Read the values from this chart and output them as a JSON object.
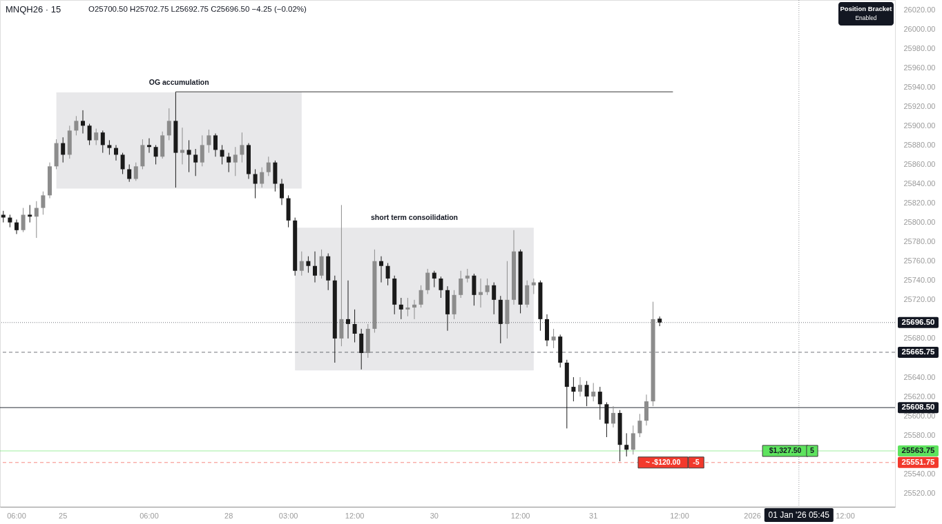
{
  "chart_data": {
    "type": "candlestick",
    "title": "MNQH26 · 15",
    "subtitle": "O25700.50 H25702.75 L25692.75 C25696.50 −4.25 (−0.02%)",
    "categories": [
      null,
      null,
      "06:00",
      null,
      null,
      null,
      null,
      null,
      null,
      "25",
      null,
      null,
      null,
      null,
      null,
      null,
      null,
      null,
      null,
      null,
      null,
      null,
      "06:00",
      null,
      null,
      null,
      null,
      null,
      null,
      null,
      null,
      null,
      null,
      null,
      "28",
      null,
      null,
      null,
      null,
      null,
      null,
      null,
      null,
      "03:00",
      null,
      null,
      null,
      null,
      null,
      null,
      null,
      null,
      null,
      "12:00",
      null,
      null,
      null,
      null,
      null,
      null,
      null,
      null,
      null,
      null,
      null,
      "30",
      null,
      null,
      null,
      null,
      null,
      null,
      null,
      null,
      null,
      null,
      null,
      null,
      "12:00",
      null,
      null,
      null,
      null,
      null,
      null,
      null,
      null,
      null,
      null,
      "31",
      null,
      null,
      null,
      null,
      null,
      null,
      null,
      null,
      null,
      null,
      null,
      null,
      "12:00",
      null,
      null,
      null,
      null,
      null,
      null,
      null,
      null,
      null,
      null,
      "2026",
      null,
      null,
      null,
      null,
      null,
      null,
      "01 Jan '26 05:45",
      null,
      null,
      null,
      null,
      null,
      null,
      "12:00",
      null,
      null,
      null,
      null,
      null,
      null,
      null
    ],
    "ohlc": [
      [
        25808,
        25812,
        25800,
        25805
      ],
      [
        25805,
        25808,
        25795,
        25800
      ],
      [
        25800,
        25803,
        25788,
        25792
      ],
      [
        25792,
        25815,
        25790,
        25808
      ],
      [
        25808,
        25818,
        25800,
        25806
      ],
      [
        25806,
        25822,
        25784,
        25815
      ],
      [
        25815,
        25832,
        25808,
        25828
      ],
      [
        25828,
        25862,
        25825,
        25858
      ],
      [
        25858,
        25886,
        25855,
        25882
      ],
      [
        25882,
        25888,
        25862,
        25870
      ],
      [
        25870,
        25900,
        25866,
        25895
      ],
      [
        25895,
        25910,
        25890,
        25905
      ],
      [
        25905,
        25916,
        25892,
        25900
      ],
      [
        25900,
        25902,
        25880,
        25885
      ],
      [
        25885,
        25897,
        25880,
        25893
      ],
      [
        25893,
        25895,
        25872,
        25880
      ],
      [
        25880,
        25885,
        25870,
        25877
      ],
      [
        25877,
        25880,
        25864,
        25870
      ],
      [
        25870,
        25872,
        25850,
        25855
      ],
      [
        25855,
        25860,
        25842,
        25845
      ],
      [
        25845,
        25862,
        25843,
        25858
      ],
      [
        25858,
        25886,
        25855,
        25880
      ],
      [
        25880,
        25887,
        25872,
        25878
      ],
      [
        25878,
        25880,
        25860,
        25868
      ],
      [
        25868,
        25894,
        25866,
        25890
      ],
      [
        25890,
        25918,
        25885,
        25905
      ],
      [
        25905,
        25935,
        25836,
        25872
      ],
      [
        25872,
        25898,
        25860,
        25875
      ],
      [
        25875,
        25885,
        25852,
        25870
      ],
      [
        25870,
        25876,
        25848,
        25862
      ],
      [
        25862,
        25890,
        25858,
        25880
      ],
      [
        25880,
        25896,
        25872,
        25890
      ],
      [
        25890,
        25892,
        25868,
        25875
      ],
      [
        25875,
        25880,
        25860,
        25868
      ],
      [
        25868,
        25872,
        25852,
        25862
      ],
      [
        25862,
        25878,
        25848,
        25870
      ],
      [
        25870,
        25893,
        25862,
        25880
      ],
      [
        25880,
        25882,
        25845,
        25850
      ],
      [
        25850,
        25855,
        25825,
        25840
      ],
      [
        25840,
        25857,
        25836,
        25852
      ],
      [
        25852,
        25868,
        25848,
        25862
      ],
      [
        25862,
        25864,
        25832,
        25840
      ],
      [
        25840,
        25845,
        25818,
        25825
      ],
      [
        25825,
        25828,
        25795,
        25802
      ],
      [
        25802,
        25805,
        25745,
        25750
      ],
      [
        25750,
        25770,
        25745,
        25760
      ],
      [
        25760,
        25765,
        25748,
        25755
      ],
      [
        25755,
        25770,
        25738,
        25745
      ],
      [
        25745,
        25772,
        25742,
        25765
      ],
      [
        25765,
        25768,
        25730,
        25740
      ],
      [
        25740,
        25745,
        25655,
        25680
      ],
      [
        25680,
        25818,
        25672,
        25700
      ],
      [
        25700,
        25740,
        25680,
        25695
      ],
      [
        25695,
        25710,
        25676,
        25685
      ],
      [
        25685,
        25690,
        25648,
        25665
      ],
      [
        25665,
        25695,
        25660,
        25690
      ],
      [
        25690,
        25772,
        25686,
        25760
      ],
      [
        25760,
        25765,
        25738,
        25755
      ],
      [
        25755,
        25758,
        25735,
        25742
      ],
      [
        25742,
        25745,
        25705,
        25715
      ],
      [
        25715,
        25722,
        25700,
        25710
      ],
      [
        25710,
        25722,
        25703,
        25712
      ],
      [
        25712,
        25720,
        25700,
        25715
      ],
      [
        25715,
        25735,
        25712,
        25730
      ],
      [
        25730,
        25752,
        25726,
        25748
      ],
      [
        25748,
        25750,
        25733,
        25742
      ],
      [
        25742,
        25744,
        25722,
        25730
      ],
      [
        25730,
        25734,
        25688,
        25705
      ],
      [
        25705,
        25730,
        25700,
        25725
      ],
      [
        25725,
        25750,
        25722,
        25742
      ],
      [
        25742,
        25752,
        25738,
        25745
      ],
      [
        25745,
        25747,
        25714,
        25725
      ],
      [
        25725,
        25742,
        25712,
        25728
      ],
      [
        25728,
        25742,
        25725,
        25735
      ],
      [
        25735,
        25738,
        25705,
        25720
      ],
      [
        25720,
        25724,
        25675,
        25695
      ],
      [
        25695,
        25760,
        25680,
        25720
      ],
      [
        25720,
        25792,
        25715,
        25770
      ],
      [
        25770,
        25772,
        25706,
        25715
      ],
      [
        25715,
        25740,
        25712,
        25735
      ],
      [
        25735,
        25742,
        25726,
        25738
      ],
      [
        25738,
        25740,
        25688,
        25700
      ],
      [
        25700,
        25705,
        25672,
        25678
      ],
      [
        25678,
        25690,
        25670,
        25682
      ],
      [
        25682,
        25684,
        25650,
        25655
      ],
      [
        25655,
        25658,
        25587,
        25630
      ],
      [
        25630,
        25640,
        25615,
        25625
      ],
      [
        25625,
        25640,
        25620,
        25632
      ],
      [
        25632,
        25636,
        25610,
        25620
      ],
      [
        25620,
        25634,
        25615,
        25625
      ],
      [
        25625,
        25630,
        25596,
        25612
      ],
      [
        25612,
        25614,
        25578,
        25592
      ],
      [
        25592,
        25610,
        25588,
        25603
      ],
      [
        25603,
        25606,
        25553,
        25570
      ],
      [
        25570,
        25582,
        25558,
        25565
      ],
      [
        25565,
        25590,
        25560,
        25582
      ],
      [
        25582,
        25602,
        25578,
        25595
      ],
      [
        25595,
        25622,
        25590,
        25615
      ],
      [
        25615,
        25718,
        25610,
        25700
      ],
      [
        25700.5,
        25702.75,
        25692.75,
        25696.5
      ],
      null,
      null,
      null,
      null,
      null,
      null,
      null,
      null,
      null,
      null,
      null,
      null,
      null,
      null,
      null,
      null,
      null,
      null,
      null,
      null,
      null,
      null,
      null,
      null,
      null,
      null,
      null,
      null,
      null,
      null,
      null,
      null,
      null,
      null,
      null
    ],
    "colors": [
      "#1a1a1a",
      "#1a1a1a",
      "#1a1a1a",
      "#8c8c8c",
      "#1a1a1a",
      "#8c8c8c",
      "#8c8c8c",
      "#8c8c8c",
      "#8c8c8c",
      "#1a1a1a",
      "#8c8c8c",
      "#8c8c8c",
      "#1a1a1a",
      "#1a1a1a",
      "#8c8c8c",
      "#1a1a1a",
      "#1a1a1a",
      "#1a1a1a",
      "#1a1a1a",
      "#1a1a1a",
      "#8c8c8c",
      "#8c8c8c",
      "#1a1a1a",
      "#1a1a1a",
      "#8c8c8c",
      "#8c8c8c",
      "#1a1a1a",
      "#8c8c8c",
      "#1a1a1a",
      "#1a1a1a",
      "#8c8c8c",
      "#8c8c8c",
      "#1a1a1a",
      "#1a1a1a",
      "#1a1a1a",
      "#8c8c8c",
      "#8c8c8c",
      "#1a1a1a",
      "#1a1a1a",
      "#8c8c8c",
      "#8c8c8c",
      "#1a1a1a",
      "#1a1a1a",
      "#1a1a1a",
      "#1a1a1a",
      "#8c8c8c",
      "#1a1a1a",
      "#1a1a1a",
      "#8c8c8c",
      "#1a1a1a",
      "#1a1a1a",
      "#8c8c8c",
      "#1a1a1a",
      "#1a1a1a",
      "#1a1a1a",
      "#8c8c8c",
      "#8c8c8c",
      "#1a1a1a",
      "#1a1a1a",
      "#1a1a1a",
      "#1a1a1a",
      "#8c8c8c",
      "#8c8c8c",
      "#8c8c8c",
      "#8c8c8c",
      "#1a1a1a",
      "#1a1a1a",
      "#1a1a1a",
      "#8c8c8c",
      "#8c8c8c",
      "#8c8c8c",
      "#1a1a1a",
      "#8c8c8c",
      "#8c8c8c",
      "#1a1a1a",
      "#1a1a1a",
      "#8c8c8c",
      "#8c8c8c",
      "#1a1a1a",
      "#8c8c8c",
      "#8c8c8c",
      "#1a1a1a",
      "#1a1a1a",
      "#8c8c8c",
      "#1a1a1a",
      "#1a1a1a",
      "#1a1a1a",
      "#8c8c8c",
      "#1a1a1a",
      "#8c8c8c",
      "#1a1a1a",
      "#1a1a1a",
      "#8c8c8c",
      "#1a1a1a",
      "#1a1a1a",
      "#8c8c8c",
      "#8c8c8c",
      "#8c8c8c",
      "#8c8c8c",
      "#1a1a1a",
      null,
      null,
      null,
      null,
      null,
      null,
      null,
      null,
      null,
      null,
      null,
      null,
      null,
      null,
      null,
      null,
      null,
      null,
      null,
      null,
      null,
      null,
      null,
      null,
      null,
      null,
      null,
      null,
      null,
      null,
      null,
      null,
      null,
      null,
      null
    ],
    "ylim": [
      25506,
      26030
    ],
    "yticks": [
      {
        "value": 25520,
        "label": "25520.00"
      },
      {
        "value": 25540,
        "label": "25540.00"
      },
      {
        "value": 25580,
        "label": "25580.00"
      },
      {
        "value": 25600,
        "label": "25600.00"
      },
      {
        "value": 25620,
        "label": "25620.00"
      },
      {
        "value": 25640,
        "label": "25640.00"
      },
      {
        "value": 25680,
        "label": "25680.00"
      },
      {
        "value": 25720,
        "label": "25720.00"
      },
      {
        "value": 25740,
        "label": "25740.00"
      },
      {
        "value": 25760,
        "label": "25760.00"
      },
      {
        "value": 25780,
        "label": "25780.00"
      },
      {
        "value": 25800,
        "label": "25800.00"
      },
      {
        "value": 25820,
        "label": "25820.00"
      },
      {
        "value": 25840,
        "label": "25840.00"
      },
      {
        "value": 25860,
        "label": "25860.00"
      },
      {
        "value": 25880,
        "label": "25880.00"
      },
      {
        "value": 25900,
        "label": "25900.00"
      },
      {
        "value": 25920,
        "label": "25920.00"
      },
      {
        "value": 25940,
        "label": "25940.00"
      },
      {
        "value": 25960,
        "label": "25960.00"
      },
      {
        "value": 25980,
        "label": "25980.00"
      },
      {
        "value": 26000,
        "label": "26000.00"
      },
      {
        "value": 26020,
        "label": "26020.00"
      }
    ],
    "series": [
      {
        "type": "line",
        "name": "OG accumulation",
        "color": "#e8e8ea",
        "values": [
          null,
          null,
          null,
          null,
          null,
          null,
          null,
          null,
          25934,
          25934,
          25934,
          25934,
          25934,
          25934,
          25934,
          25934,
          25934,
          25934,
          25934,
          25934,
          25934,
          25934,
          25934,
          25934,
          25934,
          25934,
          25934,
          25934,
          25934,
          25934,
          25934,
          25934,
          25934,
          25934,
          25934,
          25934,
          25934,
          25934,
          25934,
          25934,
          25934,
          25934,
          25934,
          25934,
          25934,
          25934,
          null,
          null,
          null,
          null,
          null,
          null,
          null,
          null,
          null,
          null,
          null,
          null,
          null,
          null,
          null,
          null,
          null,
          null,
          null,
          null,
          null,
          null,
          null,
          null,
          null,
          null,
          null,
          null,
          null,
          null,
          null,
          null,
          null,
          null,
          null,
          null,
          null,
          null,
          null,
          null,
          null,
          null,
          null,
          null,
          null,
          null,
          null,
          null,
          null,
          null,
          null,
          null,
          null,
          null,
          null,
          null,
          null,
          null,
          null,
          null,
          null,
          null,
          null,
          null,
          null,
          null,
          null,
          null,
          null,
          null,
          null,
          null,
          null,
          null,
          null,
          null,
          null,
          null,
          null,
          null,
          null,
          null,
          null,
          null,
          null,
          null,
          null,
          null,
          null
        ],
        "upper": [
          null,
          null,
          null,
          null,
          null,
          null,
          null,
          null,
          25934,
          25934,
          25934,
          25934,
          25934,
          25934,
          25934,
          25934,
          25934,
          25934,
          25934,
          25934,
          25934,
          25934,
          25934,
          25934,
          25934,
          25934,
          25934,
          25934,
          25934,
          25934,
          25934,
          25934,
          25934,
          25934,
          25934,
          25934,
          25934,
          25934,
          25934,
          25934,
          25934,
          25934,
          25934,
          25934,
          25934,
          25934,
          null,
          null,
          null,
          null,
          null,
          null,
          null,
          null,
          null,
          null,
          null,
          null,
          null,
          null,
          null,
          null,
          null,
          null,
          null,
          null,
          null,
          null,
          null,
          null,
          null,
          null,
          null,
          null,
          null,
          null,
          null,
          null,
          null,
          null,
          null,
          null,
          null,
          null,
          null,
          null,
          null,
          null,
          null,
          null,
          null,
          null,
          null,
          null,
          null,
          null,
          null,
          null,
          null,
          null,
          null,
          null,
          null,
          null,
          null,
          null,
          null,
          null,
          null,
          null,
          null,
          null,
          null,
          null,
          null,
          null,
          null,
          null,
          null,
          null,
          null,
          null,
          null,
          null,
          null,
          null,
          null,
          null,
          null,
          null,
          null,
          null,
          null,
          null,
          null
        ],
        "lower": [
          null,
          null,
          null,
          null,
          null,
          null,
          null,
          null,
          25835,
          25835,
          25835,
          25835,
          25835,
          25835,
          25835,
          25835,
          25835,
          25835,
          25835,
          25835,
          25835,
          25835,
          25835,
          25835,
          25835,
          25835,
          25835,
          25835,
          25835,
          25835,
          25835,
          25835,
          25835,
          25835,
          25835,
          25835,
          25835,
          25835,
          25835,
          25835,
          25835,
          25835,
          25835,
          25835,
          25835,
          25835,
          null,
          null,
          null,
          null,
          null,
          null,
          null,
          null,
          null,
          null,
          null,
          null,
          null,
          null,
          null,
          null,
          null,
          null,
          null,
          null,
          null,
          null,
          null,
          null,
          null,
          null,
          null,
          null,
          null,
          null,
          null,
          null,
          null,
          null,
          null,
          null,
          null,
          null,
          null,
          null,
          null,
          null,
          null,
          null,
          null,
          null,
          null,
          null,
          null,
          null,
          null,
          null,
          null,
          null,
          null,
          null,
          null,
          null,
          null,
          null,
          null,
          null,
          null,
          null,
          null,
          null,
          null,
          null,
          null,
          null,
          null,
          null,
          null,
          null,
          null,
          null,
          null,
          null,
          null,
          null,
          null,
          null,
          null,
          null,
          null,
          null,
          null,
          null,
          null
        ]
      },
      {
        "type": "line",
        "name": "short term consoilidation",
        "color": "#e8e8ea",
        "values": [
          null,
          null,
          null,
          null,
          null,
          null,
          null,
          null,
          null,
          null,
          null,
          null,
          null,
          null,
          null,
          null,
          null,
          null,
          null,
          null,
          null,
          null,
          null,
          null,
          null,
          null,
          null,
          null,
          null,
          null,
          null,
          null,
          null,
          null,
          null,
          null,
          null,
          null,
          null,
          null,
          null,
          null,
          null,
          null,
          25794,
          25794,
          25794,
          25794,
          25794,
          25794,
          25794,
          25794,
          25794,
          25794,
          25794,
          25794,
          25794,
          25794,
          25794,
          25794,
          25794,
          25794,
          25794,
          25794,
          25794,
          25794,
          25794,
          25794,
          25794,
          25794,
          25794,
          25794,
          25794,
          25794,
          25794,
          25794,
          25794,
          25794,
          25794,
          25794,
          25794,
          null,
          null,
          null,
          null,
          null,
          null,
          null,
          null,
          null,
          null,
          null,
          null,
          null,
          null,
          null,
          null,
          null,
          null,
          null,
          null,
          null,
          null,
          null,
          null,
          null,
          null,
          null,
          null,
          null,
          null,
          null,
          null,
          null,
          null,
          null,
          null,
          null,
          null,
          null,
          null,
          null,
          null,
          null,
          null,
          null,
          null,
          null,
          null,
          null,
          null,
          null,
          null,
          null,
          null
        ],
        "upper": [
          null,
          null,
          null,
          null,
          null,
          null,
          null,
          null,
          null,
          null,
          null,
          null,
          null,
          null,
          null,
          null,
          null,
          null,
          null,
          null,
          null,
          null,
          null,
          null,
          null,
          null,
          null,
          null,
          null,
          null,
          null,
          null,
          null,
          null,
          null,
          null,
          null,
          null,
          null,
          null,
          null,
          null,
          null,
          null,
          25794,
          25794,
          25794,
          25794,
          25794,
          25794,
          25794,
          25794,
          25794,
          25794,
          25794,
          25794,
          25794,
          25794,
          25794,
          25794,
          25794,
          25794,
          25794,
          25794,
          25794,
          25794,
          25794,
          25794,
          25794,
          25794,
          25794,
          25794,
          25794,
          25794,
          25794,
          25794,
          25794,
          25794,
          25794,
          25794,
          25794,
          null,
          null,
          null,
          null,
          null,
          null,
          null,
          null,
          null,
          null,
          null,
          null,
          null,
          null,
          null,
          null,
          null,
          null,
          null,
          null,
          null,
          null,
          null,
          null,
          null,
          null,
          null,
          null,
          null,
          null,
          null,
          null,
          null,
          null,
          null,
          null,
          null,
          null,
          null,
          null,
          null,
          null,
          null,
          null,
          null,
          null,
          null,
          null,
          null,
          null,
          null,
          null,
          null,
          null
        ],
        "lower": [
          null,
          null,
          null,
          null,
          null,
          null,
          null,
          null,
          null,
          null,
          null,
          null,
          null,
          null,
          null,
          null,
          null,
          null,
          null,
          null,
          null,
          null,
          null,
          null,
          null,
          null,
          null,
          null,
          null,
          null,
          null,
          null,
          null,
          null,
          null,
          null,
          null,
          null,
          null,
          null,
          null,
          null,
          null,
          null,
          25647,
          25647,
          25647,
          25647,
          25647,
          25647,
          25647,
          25647,
          25647,
          25647,
          25647,
          25647,
          25647,
          25647,
          25647,
          25647,
          25647,
          25647,
          25647,
          25647,
          25647,
          25647,
          25647,
          25647,
          25647,
          25647,
          25647,
          25647,
          25647,
          25647,
          25647,
          25647,
          25647,
          25647,
          25647,
          25647,
          25647,
          null,
          null,
          null,
          null,
          null,
          null,
          null,
          null,
          null,
          null,
          null,
          null,
          null,
          null,
          null,
          null,
          null,
          null,
          null,
          null,
          null,
          null,
          null,
          null,
          null,
          null,
          null,
          null,
          null,
          null,
          null,
          null,
          null,
          null,
          null,
          null,
          null,
          null,
          null,
          null,
          null,
          null,
          null,
          null,
          null,
          null,
          null,
          null,
          null,
          null,
          null,
          null,
          null,
          null
        ]
      },
      {
        "type": "line",
        "color": "#787878",
        "values": [
          null,
          null,
          null,
          null,
          null,
          null,
          null,
          null,
          null,
          null,
          null,
          null,
          null,
          null,
          null,
          null,
          null,
          null,
          null,
          null,
          null,
          null,
          null,
          null,
          null,
          null,
          25935,
          25935,
          25935,
          25935,
          25935,
          25935,
          25935,
          25935,
          25935,
          25935,
          25935,
          25935,
          25935,
          25935,
          25935,
          25935,
          25935,
          25935,
          25935,
          25935,
          25935,
          25935,
          25935,
          25935,
          25935,
          25935,
          25935,
          25935,
          25935,
          25935,
          25935,
          25935,
          25935,
          25935,
          25935,
          25935,
          25935,
          25935,
          25935,
          25935,
          25935,
          25935,
          25935,
          25935,
          25935,
          25935,
          25935,
          25935,
          25935,
          25935,
          25935,
          25935,
          25935,
          25935,
          25935,
          25935,
          25935,
          25935,
          25935,
          25935,
          25935,
          25935,
          25935,
          25935,
          25935,
          25935,
          25935,
          25935,
          25935,
          25935,
          25935,
          25935,
          25935,
          25935,
          25935,
          25935,
          null,
          null,
          null,
          null,
          null,
          null,
          null,
          null,
          null,
          null,
          null,
          null,
          null,
          null,
          null,
          null,
          null,
          null,
          null,
          null,
          null,
          null,
          null,
          null,
          null,
          null,
          null,
          null,
          null,
          null,
          null,
          null,
          null
        ]
      }
    ],
    "ref_lines": [
      {
        "axis": "y",
        "value": 25696.5,
        "label": "25696.50",
        "color": "#131722",
        "line_style": "dotted"
      },
      {
        "axis": "y",
        "value": 25665.75,
        "label": "25665.75",
        "color": "#131722",
        "line_style": "dashed"
      },
      {
        "axis": "y",
        "value": 25608.5,
        "label": "25608.50",
        "color": "#131722",
        "line_style": "solid"
      },
      {
        "axis": "y",
        "value": 25563.75,
        "label": "25563.75",
        "color": "#5ee35e",
        "line_style": "solid"
      },
      {
        "axis": "y",
        "value": 25551.75,
        "label": "25551.75",
        "color": "#f2392c",
        "line_style": "dashed"
      },
      {
        "axis": "x",
        "value": "01 Jan '26 05:45",
        "color": "#131722",
        "line_style": "dotted"
      }
    ],
    "annotations": [
      {
        "text": "$1,327.50",
        "y": 25563.75
      },
      {
        "text": "5",
        "y": 25563.75
      },
      {
        "text": "~ -$120.00",
        "y": 25551.75
      },
      {
        "text": "-5",
        "y": 25551.75
      },
      "Position Bracket",
      "Enabled"
    ]
  }
}
